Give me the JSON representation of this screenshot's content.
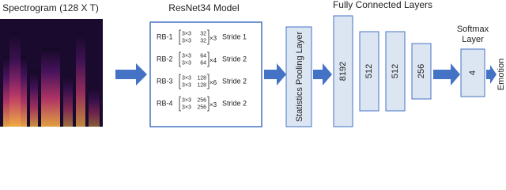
{
  "spectrogram": {
    "label": "Spectrogram (128 X T)"
  },
  "resnet": {
    "title": "ResNet34 Model",
    "blocks": [
      {
        "name": "RB-1",
        "kernels": [
          "3×3",
          "3×3"
        ],
        "channels": [
          "32",
          "32"
        ],
        "repeat": "×3",
        "stride": "Stride 1"
      },
      {
        "name": "RB-2",
        "kernels": [
          "3×3",
          "3×3"
        ],
        "channels": [
          "64",
          "64"
        ],
        "repeat": "×4",
        "stride": "Stride 2"
      },
      {
        "name": "RB-3",
        "kernels": [
          "3×3",
          "3×3"
        ],
        "channels": [
          "128",
          "128"
        ],
        "repeat": "×6",
        "stride": "Stride 2"
      },
      {
        "name": "RB-4",
        "kernels": [
          "3×3",
          "3×3"
        ],
        "channels": [
          "256",
          "256"
        ],
        "repeat": "×3",
        "stride": "Stride 2"
      }
    ]
  },
  "pooling": {
    "label": "Statistics Pooling Layer"
  },
  "fc": {
    "title": "Fully Connected Layers",
    "layers": [
      "8192",
      "512",
      "512",
      "256"
    ]
  },
  "softmax": {
    "title": [
      "Softmax",
      "Layer"
    ],
    "units": "4"
  },
  "output": {
    "label": "Emotion"
  }
}
